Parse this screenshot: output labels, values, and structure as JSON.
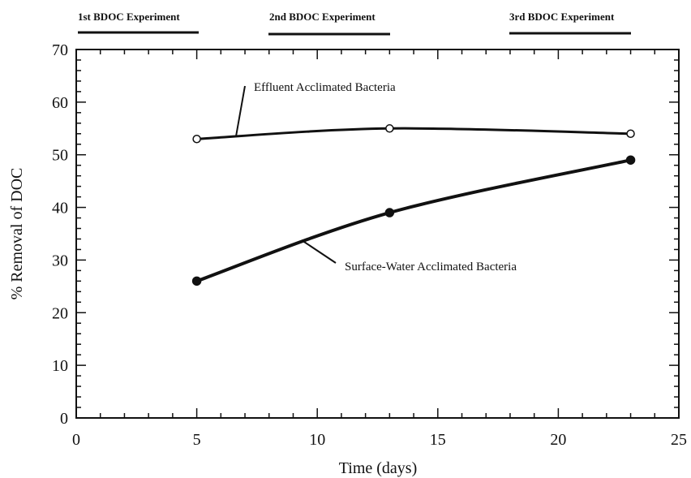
{
  "chart_data": {
    "type": "line",
    "title": "",
    "xlabel": "Time (days)",
    "ylabel": "% Removal of DOC",
    "xlim": [
      0,
      25
    ],
    "ylim": [
      0,
      70
    ],
    "x_ticks": [
      "0",
      "5",
      "10",
      "15",
      "20",
      "25"
    ],
    "y_ticks": [
      "0",
      "10",
      "20",
      "30",
      "40",
      "50",
      "60",
      "70"
    ],
    "grid": false,
    "legend": "none",
    "series": [
      {
        "name": "Effluent Acclimated Bacteria",
        "marker": "open-circle",
        "x": [
          5,
          13,
          23
        ],
        "y": [
          53,
          55,
          54
        ]
      },
      {
        "name": "Surface-Water Acclimated Bacteria",
        "marker": "filled-circle",
        "x": [
          5,
          13,
          23
        ],
        "y": [
          26,
          39,
          49
        ]
      }
    ],
    "experiments": [
      {
        "label": "1st BDOC Experiment",
        "start": 0,
        "end": 5
      },
      {
        "label": "2nd BDOC Experiment",
        "start": 8,
        "end": 13
      },
      {
        "label": "3rd BDOC Experiment",
        "start": 18,
        "end": 23
      }
    ],
    "colors": {
      "line": "#111111"
    }
  }
}
